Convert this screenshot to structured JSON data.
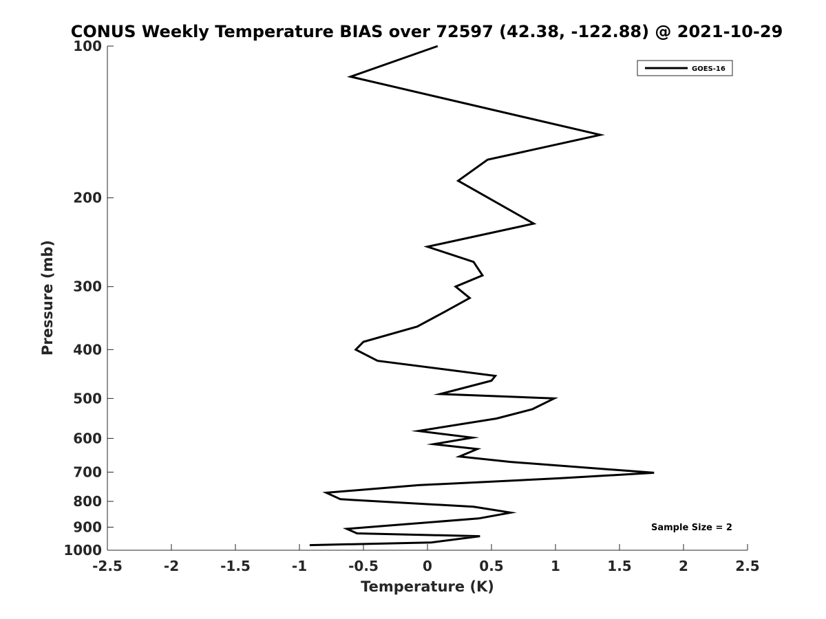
{
  "chart_data": {
    "type": "line",
    "title": "CONUS Weekly Temperature BIAS over 72597 (42.38, -122.88) @ 2021-10-29",
    "xlabel": "Temperature (K)",
    "ylabel": "Pressure (mb)",
    "xlim": [
      -2.5,
      2.5
    ],
    "ylim": [
      1000,
      100
    ],
    "yscale": "log",
    "yreversed": true,
    "xticks": [
      "-2.5",
      "-2",
      "-1.5",
      "-1",
      "-0.5",
      "0",
      "0.5",
      "1",
      "1.5",
      "2",
      "2.5"
    ],
    "xtick_values": [
      -2.5,
      -2,
      -1.5,
      -1,
      -0.5,
      0,
      0.5,
      1,
      1.5,
      2,
      2.5
    ],
    "yticks": [
      "100",
      "200",
      "300",
      "400",
      "500",
      "600",
      "700",
      "800",
      "900",
      "1000"
    ],
    "ytick_values": [
      100,
      200,
      300,
      400,
      500,
      600,
      700,
      800,
      900,
      1000
    ],
    "grid": false,
    "legend_position": "top-right",
    "series": [
      {
        "name": "GOES-16",
        "color": "#000000",
        "points": [
          [
            0.08,
            100
          ],
          [
            -0.6,
            115
          ],
          [
            1.35,
            150
          ],
          [
            0.47,
            168
          ],
          [
            0.24,
            185
          ],
          [
            0.83,
            225
          ],
          [
            0.0,
            250
          ],
          [
            0.36,
            268
          ],
          [
            0.43,
            285
          ],
          [
            0.22,
            300
          ],
          [
            0.33,
            316
          ],
          [
            0.13,
            337
          ],
          [
            -0.08,
            360
          ],
          [
            -0.5,
            386
          ],
          [
            -0.56,
            400
          ],
          [
            -0.39,
            421
          ],
          [
            0.53,
            451
          ],
          [
            0.5,
            461
          ],
          [
            0.1,
            490
          ],
          [
            0.99,
            500
          ],
          [
            0.82,
            525
          ],
          [
            0.54,
            548
          ],
          [
            -0.07,
            580
          ],
          [
            0.35,
            598
          ],
          [
            0.05,
            616
          ],
          [
            0.39,
            630
          ],
          [
            0.25,
            652
          ],
          [
            0.65,
            668
          ],
          [
            1.77,
            702
          ],
          [
            1.03,
            720
          ],
          [
            -0.07,
            743
          ],
          [
            -0.79,
            769
          ],
          [
            -0.68,
            792
          ],
          [
            0.36,
            820
          ],
          [
            0.65,
            842
          ],
          [
            0.4,
            865
          ],
          [
            -0.63,
            907
          ],
          [
            -0.55,
            926
          ],
          [
            0.41,
            938
          ],
          [
            0.03,
            965
          ],
          [
            -0.92,
            977
          ]
        ]
      }
    ],
    "annotations": [
      "Sample Size = 2"
    ]
  }
}
